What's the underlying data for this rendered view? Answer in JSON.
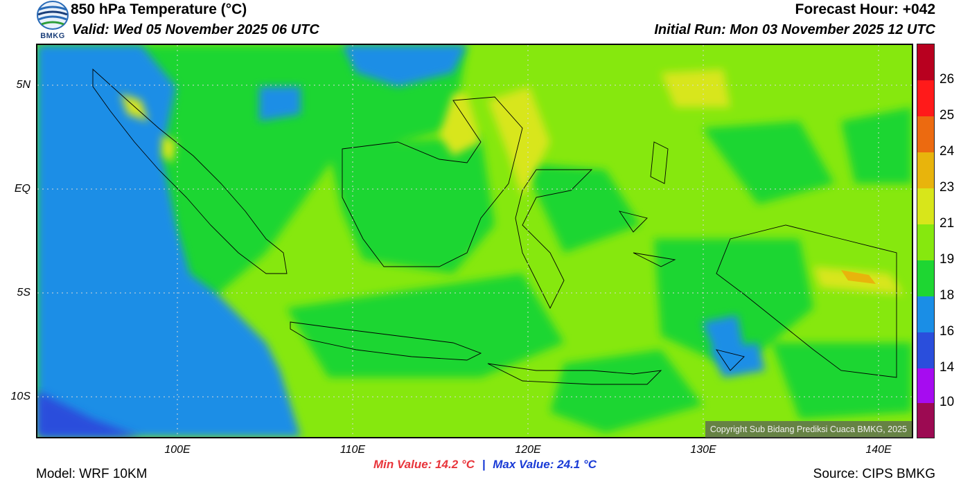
{
  "header": {
    "title": "850 hPa Temperature (°C)",
    "valid": "Valid: Wed 05 November 2025 06 UTC",
    "forecast_hour": "Forecast Hour: +042",
    "initial_run": "Initial Run: Mon 03 November 2025 12 UTC"
  },
  "logo": {
    "text": "BMKG"
  },
  "map": {
    "lat_labels": [
      "5N",
      "EQ",
      "5S",
      "10S"
    ],
    "lon_labels": [
      "100E",
      "110E",
      "120E",
      "130E",
      "140E"
    ],
    "lat_values": [
      5,
      0,
      -5,
      -10
    ],
    "lon_values": [
      100,
      110,
      120,
      130,
      140
    ],
    "lon_range": [
      92,
      142
    ],
    "lat_range": [
      -12,
      7
    ],
    "copyright": "Copyright Sub Bidang Prediksi Cuaca BMKG, 2025"
  },
  "stats": {
    "min_value": "Min Value: 14.2 °C",
    "separator": "|",
    "max_value": "Max Value: 24.1 °C"
  },
  "footer": {
    "model": "Model: WRF 10KM",
    "source": "Source: CIPS BMKG"
  },
  "colorbar": {
    "labels": [
      "26",
      "25",
      "24",
      "23",
      "21",
      "19",
      "18",
      "16",
      "14",
      "10"
    ],
    "colors": [
      "#b8001f",
      "#ff1a1a",
      "#ec6a10",
      "#e8b40c",
      "#d8e61a",
      "#86e80e",
      "#1ed632",
      "#1a8ee6",
      "#2a4edc",
      "#a60cf0",
      "#9c0a52"
    ],
    "field_colors": {
      "cold_sea": "#1a8ee6",
      "deep_cold": "#2a4edc",
      "mid": "#1ed632",
      "warm": "#86e80e",
      "warmer": "#d8e61a",
      "hot": "#e8b40c"
    }
  }
}
